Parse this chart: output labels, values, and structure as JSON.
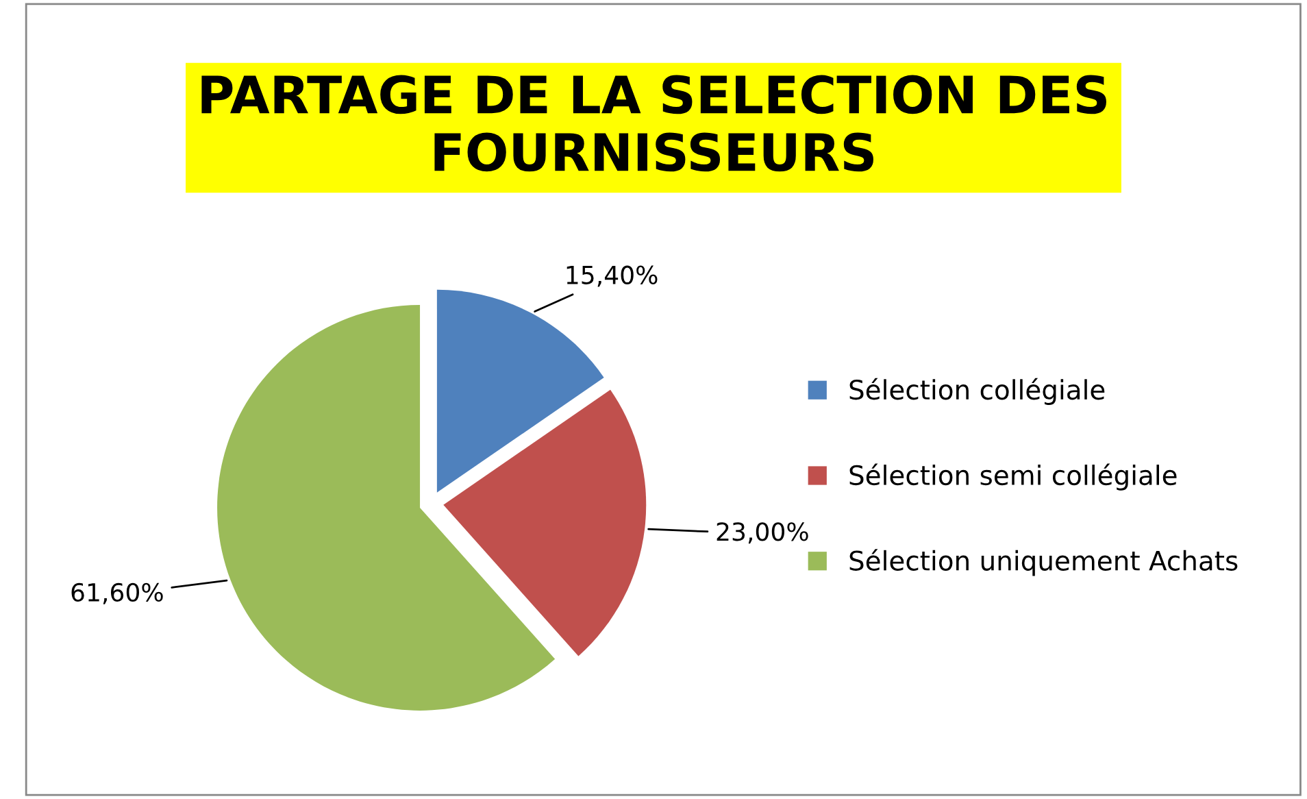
{
  "chart_data": {
    "type": "pie",
    "title": "PARTAGE DE LA SELECTION DES FOURNISSEURS",
    "categories": [
      "Sélection collégiale",
      "Sélection semi collégiale",
      "Sélection uniquement Achats"
    ],
    "values": [
      15.4,
      23.0,
      61.6
    ],
    "colors": [
      "#4f81bd",
      "#c0504d",
      "#9bbb59"
    ],
    "value_labels": [
      "15,40%",
      "23,00%",
      "61,60%"
    ],
    "legend": "right"
  }
}
